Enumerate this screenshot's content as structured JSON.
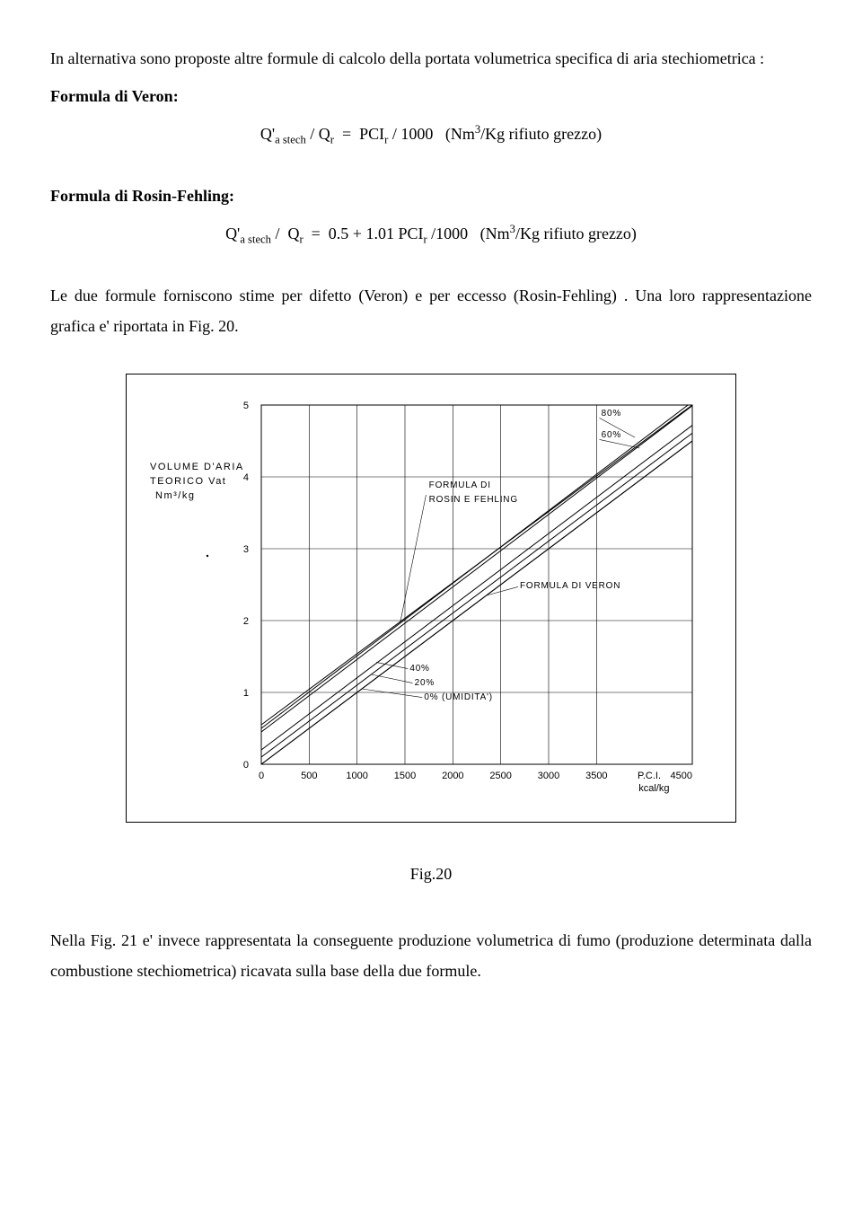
{
  "intro_text": "In alternativa sono proposte altre formule di calcolo della portata volumetrica specifica di aria stechiometrica :",
  "formula_veron_title": "Formula di Veron:",
  "formula_veron_eq": "Q'ₐ stech / Qᵣ  =  PCIᵣ / 1000   (Nm³/Kg rifiuto grezzo)",
  "formula_rosin_title": "Formula di Rosin-Fehling:",
  "formula_rosin_eq": "Q'ₐ stech /  Qᵣ  =  0.5 + 1.01 PCIᵣ /1000   (Nm³/Kg rifiuto grezzo)",
  "mid_para": "Le due formule forniscono stime per difetto (Veron) e per eccesso (Rosin-Fehling) . Una loro rappresentazione grafica e' riportata in Fig. 20.",
  "chart": {
    "type": "line",
    "y_axis_label_line1": "VOLUME  D'ARIA",
    "y_axis_label_line2": "TEORICO  Vₐₜ",
    "y_axis_label_line3": "Nm³/kg",
    "x_axis_label_line1": "P.C.I.",
    "x_axis_label_line2": "kcal/kg",
    "xlim": [
      0,
      4500
    ],
    "ylim": [
      0,
      5
    ],
    "x_ticks": [
      0,
      500,
      1000,
      1500,
      2000,
      2500,
      3000,
      3500,
      4500
    ],
    "y_ticks": [
      0,
      1,
      2,
      3,
      4,
      5
    ],
    "grid_color": "#000000",
    "background_color": "#ffffff",
    "line_color": "#000000",
    "line_width": 1,
    "series_veron": {
      "name": "FORMULA DI VERON",
      "points": [
        [
          0,
          0
        ],
        [
          4500,
          4.5
        ]
      ]
    },
    "series_rosin": {
      "name": "FORMULA DI ROSIN E FEHLING",
      "points": [
        [
          0,
          0.5
        ],
        [
          4500,
          5.05
        ]
      ]
    },
    "humidity_lines": [
      {
        "label": "0% (UMIDITA')",
        "offset": 0
      },
      {
        "label": "20%",
        "offset": 0.1
      },
      {
        "label": "40%",
        "offset": 0.2
      },
      {
        "label": "60%",
        "offset": 0.45
      },
      {
        "label": "80%",
        "offset": 0.55
      }
    ],
    "annotations": {
      "rosin_label": "FORMULA DI\nROSIN E FEHLING",
      "veron_label": "FORMULA DI VERON",
      "pct80": "80%",
      "pct60": "60%",
      "pct40": "40%",
      "pct20": "20%",
      "pct0": "0% (UMIDITA')"
    }
  },
  "fig_caption": "Fig.20",
  "closing_para": "Nella Fig. 21 e' invece rappresentata la conseguente produzione volumetrica di fumo (produzione determinata dalla combustione stechiometrica) ricavata sulla base della due formule."
}
